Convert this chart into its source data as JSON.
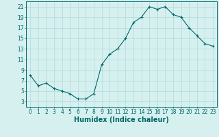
{
  "x": [
    0,
    1,
    2,
    3,
    4,
    5,
    6,
    7,
    8,
    9,
    10,
    11,
    12,
    13,
    14,
    15,
    16,
    17,
    18,
    19,
    20,
    21,
    22,
    23
  ],
  "y": [
    8,
    6,
    6.5,
    5.5,
    5,
    4.5,
    3.5,
    3.5,
    4.5,
    10,
    12,
    13,
    15,
    18,
    19,
    21,
    20.5,
    21,
    19.5,
    19,
    17,
    15.5,
    14,
    13.5
  ],
  "line_color": "#006666",
  "marker": "+",
  "bg_color": "#d6f0f0",
  "grid_color": "#b0d8d8",
  "xlabel": "Humidex (Indice chaleur)",
  "xlim": [
    -0.5,
    23.5
  ],
  "ylim": [
    2,
    22
  ],
  "xticks": [
    0,
    1,
    2,
    3,
    4,
    5,
    6,
    7,
    8,
    9,
    10,
    11,
    12,
    13,
    14,
    15,
    16,
    17,
    18,
    19,
    20,
    21,
    22,
    23
  ],
  "yticks": [
    3,
    5,
    7,
    9,
    11,
    13,
    15,
    17,
    19,
    21
  ],
  "tick_color": "#006666",
  "label_color": "#006666",
  "xlabel_fontsize": 7,
  "tick_fontsize": 5.5
}
